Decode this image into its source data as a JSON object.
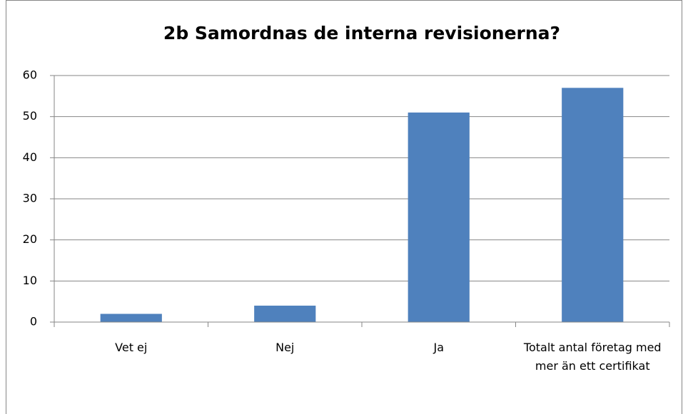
{
  "chart_data": {
    "type": "bar",
    "title": "2b Samordnas de interna revisionerna?",
    "categories": [
      "Vet ej",
      "Nej",
      "Ja",
      "Totalt antal företag med mer än ett certifikat"
    ],
    "values": [
      2,
      4,
      51,
      57
    ],
    "color": "#4f81bd",
    "ylim": [
      0,
      60
    ],
    "yticks": [
      0,
      10,
      20,
      30,
      40,
      50,
      60
    ],
    "grid": true
  }
}
